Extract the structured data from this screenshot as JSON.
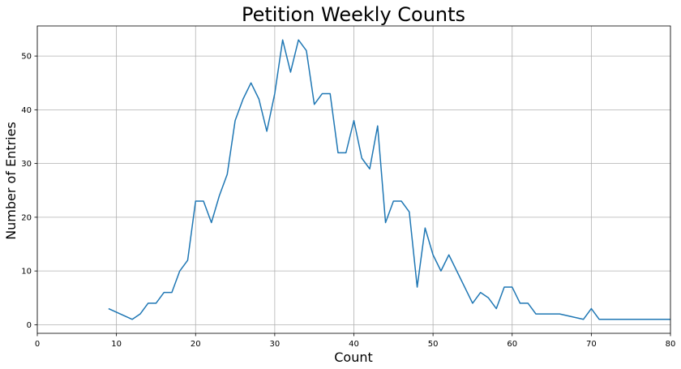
{
  "chart_data": {
    "type": "line",
    "title": "Petition Weekly Counts",
    "xlabel": "Count",
    "ylabel": "Number of Entries",
    "xlim": [
      0,
      80
    ],
    "ylim": [
      -1.6,
      55.6
    ],
    "xticks": [
      0,
      10,
      20,
      30,
      40,
      50,
      60,
      70,
      80
    ],
    "yticks": [
      0,
      10,
      20,
      30,
      40,
      50
    ],
    "grid": true,
    "legend": "none",
    "line_color": "#1f77b4",
    "grid_color": "#b0b0b0",
    "series": [
      {
        "x": [
          9,
          12,
          13,
          14,
          15,
          16,
          17,
          18,
          19,
          20,
          21,
          22,
          23,
          24,
          25,
          26,
          27,
          28,
          29,
          30,
          31,
          32,
          33,
          34,
          35,
          36,
          37,
          38,
          39,
          40,
          41,
          42,
          43,
          44,
          45,
          46,
          47,
          48,
          49,
          50,
          51,
          52,
          55,
          56,
          57,
          58,
          59,
          60,
          61,
          62,
          63,
          66,
          69,
          70,
          71,
          80
        ],
        "y": [
          3,
          1,
          2,
          4,
          4,
          6,
          6,
          10,
          12,
          23,
          23,
          19,
          24,
          28,
          38,
          42,
          45,
          42,
          36,
          43,
          53,
          47,
          53,
          51,
          41,
          43,
          43,
          32,
          32,
          38,
          31,
          29,
          37,
          19,
          23,
          23,
          21,
          7,
          18,
          13,
          10,
          13,
          4,
          6,
          5,
          3,
          7,
          7,
          4,
          4,
          2,
          2,
          1,
          3,
          1,
          1
        ]
      }
    ]
  }
}
